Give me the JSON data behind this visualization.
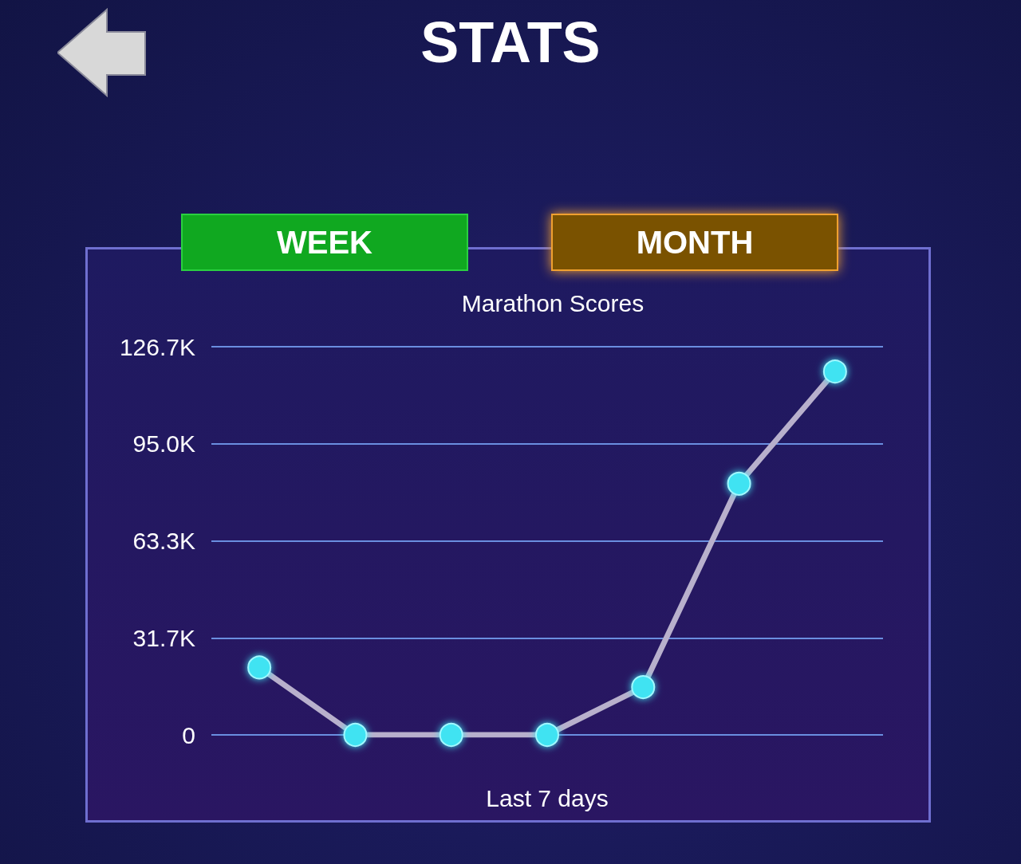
{
  "chart_data": {
    "type": "line",
    "title": "Marathon Scores",
    "xlabel": "Last 7 days",
    "annotations": [
      "STATS",
      "WEEK",
      "MONTH"
    ],
    "categories": [
      null,
      null,
      null,
      null,
      null,
      null,
      null
    ],
    "series": [
      {
        "color": "#3fe3f2",
        "values": [
          22000,
          0,
          0,
          0,
          15600,
          82000,
          118600
        ]
      }
    ],
    "ylim": [
      0,
      126700
    ],
    "yticks": [
      0,
      {
        "value": 31675,
        "label": "31.7K"
      },
      {
        "value": 63350,
        "label": "63.3K"
      },
      {
        "value": 95025,
        "label": "95.0K"
      },
      {
        "value": 126700,
        "label": "126.7K"
      }
    ],
    "grid": "y",
    "marker": "circle",
    "line_style": "solid"
  }
}
